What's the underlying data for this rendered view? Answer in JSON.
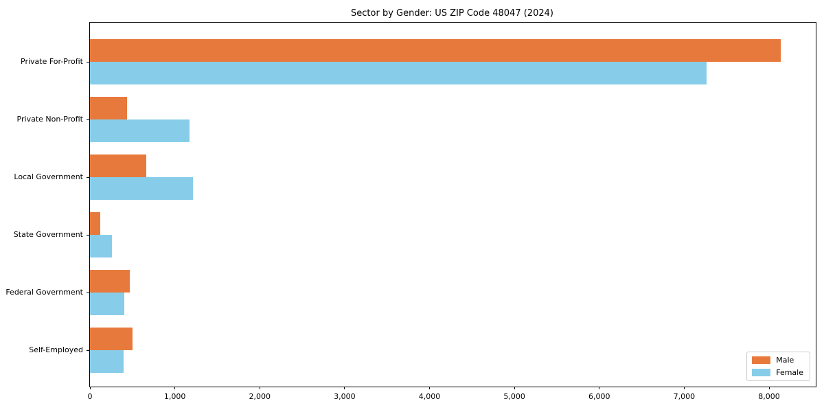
{
  "chart_data": {
    "type": "bar",
    "orientation": "horizontal",
    "title": "Sector by Gender: US ZIP Code 48047 (2024)",
    "categories": [
      "Private For-Profit",
      "Private Non-Profit",
      "Local Government",
      "State Government",
      "Federal Government",
      "Self-Employed"
    ],
    "series": [
      {
        "name": "Male",
        "color": "#e8793c",
        "values": [
          8140,
          435,
          660,
          120,
          470,
          505
        ]
      },
      {
        "name": "Female",
        "color": "#87cde9",
        "values": [
          7260,
          1175,
          1210,
          260,
          405,
          395
        ]
      }
    ],
    "xlabel": "",
    "ylabel": "",
    "xlim": [
      0,
      8550
    ],
    "x_ticks": [
      0,
      1000,
      2000,
      3000,
      4000,
      5000,
      6000,
      7000,
      8000
    ],
    "x_tick_labels": [
      "0",
      "1,000",
      "2,000",
      "3,000",
      "4,000",
      "5,000",
      "6,000",
      "7,000",
      "8,000"
    ],
    "grid": "off",
    "legend_position": "lower right"
  },
  "colors": {
    "plot_border": "#000000",
    "legend_border": "#cccccc",
    "background": "#ffffff"
  }
}
